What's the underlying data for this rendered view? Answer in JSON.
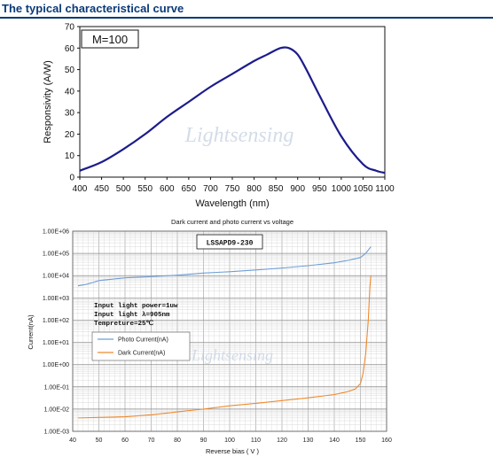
{
  "header": {
    "title": "The typical characteristical curve"
  },
  "colors": {
    "title": "#0b3a78",
    "curve1": "#1c1c8c",
    "photo": "#6e9ed6",
    "dark": "#ef8a2e"
  },
  "chart_data": [
    {
      "type": "line",
      "title": "",
      "xlabel": "Wavelength (nm)",
      "ylabel": "Responsivity (A/W)",
      "xlim": [
        400,
        1100
      ],
      "ylim": [
        0,
        70
      ],
      "x_ticks": [
        400,
        450,
        500,
        550,
        600,
        650,
        700,
        750,
        800,
        850,
        900,
        950,
        1000,
        1050,
        1100
      ],
      "y_ticks": [
        0,
        10,
        20,
        30,
        40,
        50,
        60,
        70
      ],
      "grid": false,
      "annotation": "M=100",
      "watermark": "Lightsensing",
      "series": [
        {
          "x": [
            400,
            450,
            500,
            550,
            600,
            650,
            700,
            750,
            800,
            830,
            860,
            880,
            900,
            920,
            950,
            1000,
            1050,
            1080,
            1100
          ],
          "y": [
            3,
            7,
            13,
            20,
            28,
            35,
            42,
            48,
            54,
            57,
            60,
            60,
            57,
            50,
            38,
            19,
            6,
            3,
            2
          ]
        }
      ]
    },
    {
      "type": "line",
      "title": "Dark current and photo current vs voltage",
      "xlabel": "Reverse bias ( V )",
      "ylabel": "Current(nA)",
      "xlim": [
        40,
        160
      ],
      "ylim": [
        0.001,
        1000000
      ],
      "yscale": "log",
      "x_ticks": [
        40,
        50,
        60,
        70,
        80,
        90,
        100,
        110,
        120,
        130,
        140,
        150,
        160
      ],
      "y_ticks": [
        "1.00E-03",
        "1.00E-02",
        "1.00E-01",
        "1.00E+00",
        "1.00E+01",
        "1.00E+02",
        "1.00E+03",
        "1.00E+04",
        "1.00E+05",
        "1.00E+06"
      ],
      "grid": true,
      "model_label": "LSSAPD9-230",
      "conditions": [
        "Input light power=1uw",
        "Input light λ=905nm",
        "Tempreture=25℃"
      ],
      "legend_position": "center-left",
      "watermark": "Lightsensing",
      "series": [
        {
          "name": "Photo Current(nA)",
          "x": [
            42,
            45,
            48,
            50,
            60,
            70,
            80,
            90,
            100,
            110,
            120,
            130,
            140,
            145,
            150,
            152,
            154
          ],
          "y": [
            3500,
            4000,
            5000,
            6000,
            8000,
            9000,
            10500,
            13000,
            15000,
            18000,
            22000,
            28000,
            38000,
            48000,
            65000,
            100000,
            200000
          ]
        },
        {
          "name": "Dark Current(nA)",
          "x": [
            42,
            50,
            60,
            70,
            80,
            90,
            100,
            110,
            120,
            130,
            140,
            145,
            148,
            150,
            151,
            152,
            153,
            153.6,
            154
          ],
          "y": [
            0.004,
            0.0042,
            0.0045,
            0.0055,
            0.0075,
            0.01,
            0.014,
            0.018,
            0.024,
            0.032,
            0.045,
            0.06,
            0.08,
            0.14,
            0.4,
            3,
            100,
            3000,
            10000
          ]
        }
      ]
    }
  ]
}
